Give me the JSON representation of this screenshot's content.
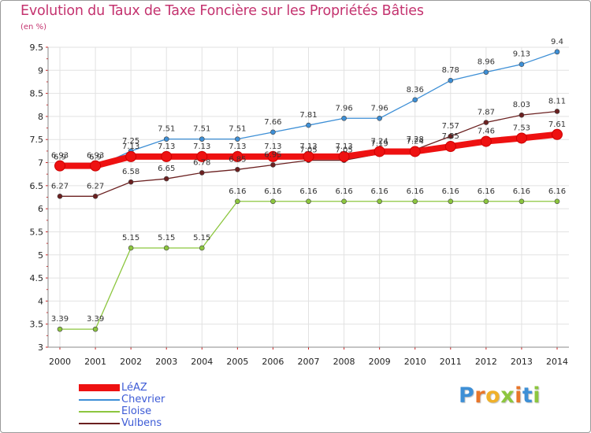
{
  "title": "Evolution du Taux de Taxe Foncière sur les Propriétés Bâties",
  "subtitle": "(en %)",
  "logo": {
    "letters": [
      "P",
      "r",
      "o",
      "x",
      "i",
      "t",
      "i"
    ],
    "colors": [
      "#3d8fd6",
      "#e8762a",
      "#f0b12a",
      "#8cc63e",
      "#e8762a",
      "#3d8fd6",
      "#8cc63e"
    ]
  },
  "chart_data": {
    "type": "line",
    "title": "Evolution du Taux de Taxe Foncière sur les Propriétés Bâties",
    "ylabel": "(en %)",
    "xlabel": "",
    "x": [
      "2000",
      "2001",
      "2002",
      "2003",
      "2004",
      "2005",
      "2006",
      "2007",
      "2008",
      "2009",
      "2010",
      "2011",
      "2012",
      "2013",
      "2014"
    ],
    "ylim": [
      3,
      9.5
    ],
    "yticks": [
      "3",
      "3.5",
      "4",
      "4.5",
      "5",
      "5.5",
      "6",
      "6.5",
      "7",
      "7.5",
      "8",
      "8.5",
      "9",
      "9.5"
    ],
    "grid": true,
    "legend_position": "bottom-left",
    "series": [
      {
        "name": "LéAZ",
        "color": "#ee1111",
        "labels": [
          "6.93",
          "6.93",
          "7.13",
          "7.13",
          "7.13",
          "7.13",
          "7.13",
          "7.13",
          "7.13",
          "7.24",
          "7.24",
          "7.35",
          "7.46",
          "7.53",
          "7.61"
        ],
        "values": [
          6.93,
          6.93,
          7.13,
          7.13,
          7.13,
          7.13,
          7.13,
          7.13,
          7.13,
          7.24,
          7.24,
          7.35,
          7.46,
          7.53,
          7.61
        ]
      },
      {
        "name": "Chevrier",
        "color": "#3d8fd6",
        "labels": [
          "6.9",
          "6.9",
          "7.25",
          "7.51",
          "7.51",
          "7.51",
          "7.66",
          "7.81",
          "7.96",
          "7.96",
          "8.36",
          "8.78",
          "8.96",
          "9.13",
          "9.4"
        ],
        "values": [
          6.9,
          6.9,
          7.25,
          7.51,
          7.51,
          7.51,
          7.66,
          7.81,
          7.96,
          7.96,
          8.36,
          8.78,
          8.96,
          9.13,
          9.4
        ]
      },
      {
        "name": "Eloise",
        "color": "#8cc63e",
        "labels": [
          "3.39",
          "3.39",
          "5.15",
          "5.15",
          "5.15",
          "6.16",
          "6.16",
          "6.16",
          "6.16",
          "6.16",
          "6.16",
          "6.16",
          "6.16",
          "6.16",
          "6.16"
        ],
        "values": [
          3.39,
          3.39,
          5.15,
          5.15,
          5.15,
          6.16,
          6.16,
          6.16,
          6.16,
          6.16,
          6.16,
          6.16,
          6.16,
          6.16,
          6.16
        ]
      },
      {
        "name": "Vulbens",
        "color": "#6b2020",
        "labels": [
          "6.27",
          "6.27",
          "6.58",
          "6.65",
          "6.78",
          "6.85",
          "6.95",
          "7.05",
          "7.05",
          "7.19",
          "7.28",
          "7.57",
          "7.87",
          "8.03",
          "8.11"
        ],
        "values": [
          6.27,
          6.27,
          6.58,
          6.65,
          6.78,
          6.85,
          6.95,
          7.05,
          7.05,
          7.19,
          7.28,
          7.57,
          7.87,
          8.03,
          8.11
        ]
      }
    ]
  }
}
